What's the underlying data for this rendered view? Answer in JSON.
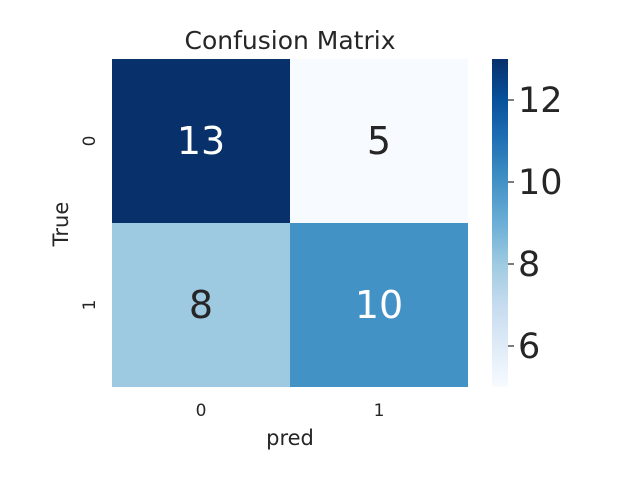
{
  "chart_data": {
    "type": "heatmap",
    "title": "Confusion Matrix",
    "xlabel": "pred",
    "ylabel": "True",
    "x_categories": [
      "0",
      "1"
    ],
    "y_categories": [
      "0",
      "1"
    ],
    "values": [
      [
        13,
        5
      ],
      [
        8,
        10
      ]
    ],
    "colormap": "Blues",
    "color_range": [
      5,
      13
    ],
    "colorbar": {
      "ticks": [
        6,
        8,
        10,
        12
      ],
      "tick_labels": [
        "6",
        "8",
        "10",
        "12"
      ],
      "placement": "right"
    },
    "annotated": true,
    "grid": false
  }
}
